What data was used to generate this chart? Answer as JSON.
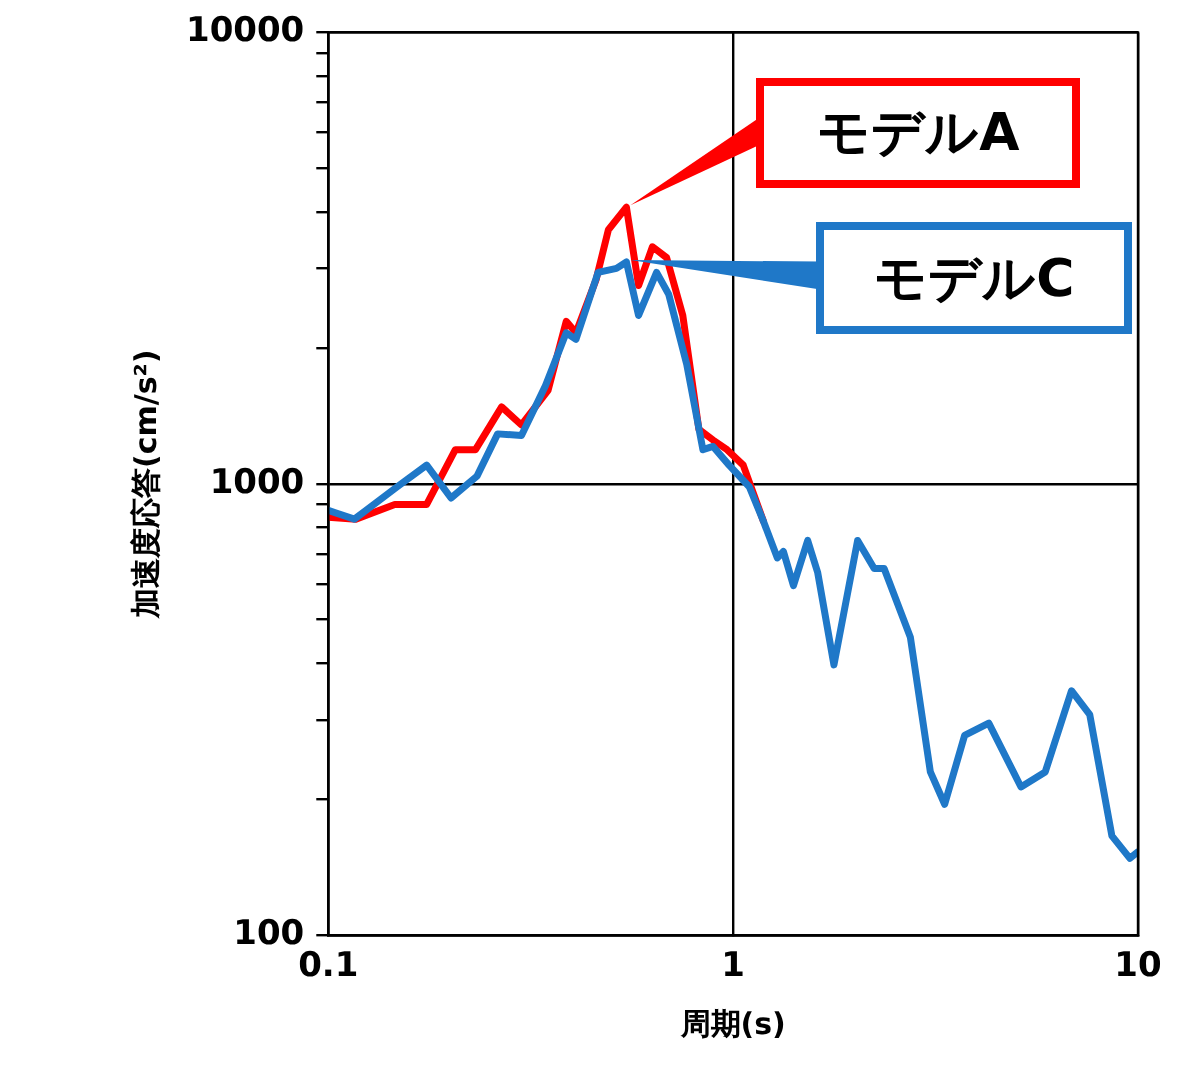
{
  "chart_data": {
    "type": "line",
    "xlabel": "周期(s)",
    "ylabel": "加速度応答(cm/s²)",
    "log": "xy",
    "grid": true,
    "marker": "none",
    "line_style": "solid",
    "xlim": [
      0.1,
      10
    ],
    "xticks": [
      0.1,
      1,
      10
    ],
    "legend": "top right",
    "ylim": [
      100,
      10000
    ],
    "yticks": [
      100,
      {
        "value": 200,
        "label": null
      },
      {
        "value": 300,
        "label": null
      },
      {
        "value": 400,
        "label": null
      },
      {
        "value": 500,
        "label": null
      },
      {
        "value": 600,
        "label": null
      },
      {
        "value": 700,
        "label": null
      },
      {
        "value": 800,
        "label": null
      },
      {
        "value": 900,
        "label": null
      },
      1000,
      {
        "value": 2000,
        "label": null
      },
      {
        "value": 3000,
        "label": null
      },
      {
        "value": 4000,
        "label": null
      },
      {
        "value": 5000,
        "label": null
      },
      {
        "value": 6000,
        "label": null
      },
      {
        "value": 7000,
        "label": null
      },
      {
        "value": 8000,
        "label": null
      },
      {
        "value": 9000,
        "label": null
      },
      10000
    ],
    "series": [
      {
        "name": "モデルA",
        "color": "#ff0000",
        "x": [
          0.1,
          0.117,
          0.146,
          0.175,
          0.206,
          0.231,
          0.268,
          0.3,
          0.349,
          0.387,
          0.409,
          0.459,
          0.492,
          0.545,
          0.584,
          0.632,
          0.685,
          0.751,
          0.823,
          0.892,
          0.966,
          1.059,
          1.188
        ],
        "values": [
          843,
          835,
          900,
          900,
          1190,
          1190,
          1480,
          1350,
          1610,
          2290,
          2160,
          2840,
          3655,
          4100,
          2750,
          3350,
          3170,
          2360,
          1320,
          1250,
          1190,
          1100,
          826
        ]
      },
      {
        "name": "モデルC",
        "color": "#1f78c8",
        "x": [
          0.1,
          0.116,
          0.148,
          0.175,
          0.201,
          0.233,
          0.262,
          0.3,
          0.344,
          0.387,
          0.409,
          0.464,
          0.515,
          0.545,
          0.584,
          0.647,
          0.693,
          0.768,
          0.842,
          0.892,
          0.977,
          1.096,
          1.188,
          1.286,
          1.331,
          1.409,
          1.528,
          1.618,
          1.774,
          2.03,
          2.23,
          2.36,
          2.74,
          3.07,
          3.33,
          3.73,
          4.28,
          5.14,
          5.9,
          6.85,
          7.6,
          8.62,
          9.55,
          10
        ],
        "values": [
          873,
          835,
          985,
          1100,
          930,
          1040,
          1290,
          1280,
          1650,
          2160,
          2090,
          2940,
          3000,
          3100,
          2360,
          2940,
          2630,
          1840,
          1190,
          1210,
          1100,
          985,
          826,
          685,
          708,
          595,
          749,
          635,
          397,
          749,
          649,
          649,
          457,
          230,
          195,
          277,
          295,
          213,
          230,
          348,
          308,
          166,
          148,
          153
        ]
      }
    ]
  }
}
